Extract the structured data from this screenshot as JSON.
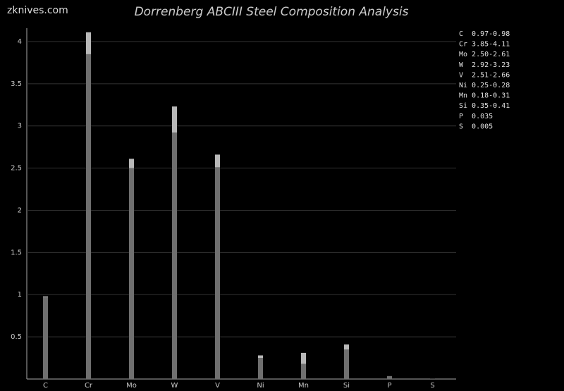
{
  "watermark": "zknives.com",
  "chart_data": {
    "type": "range-bar",
    "title": "Dorrenberg ABCIII Steel Composition Analysis",
    "categories": [
      "C",
      "Cr",
      "Mo",
      "W",
      "V",
      "Ni",
      "Mn",
      "Si",
      "P",
      "S"
    ],
    "min_values": [
      0.97,
      3.85,
      2.5,
      2.92,
      2.51,
      0.25,
      0.18,
      0.35,
      0.035,
      0.005
    ],
    "max_values": [
      0.98,
      4.11,
      2.61,
      3.23,
      2.66,
      0.28,
      0.31,
      0.41,
      0.035,
      0.005
    ],
    "min_color": "#6f6f6f",
    "range_color": "#b8b8b8",
    "legend": [
      "C  0.97-0.98",
      "Cr 3.85-4.11",
      "Mo 2.50-2.61",
      "W  2.92-3.23",
      "V  2.51-2.66",
      "Ni 0.25-0.28",
      "Mn 0.18-0.31",
      "Si 0.35-0.41",
      "P  0.035",
      "S  0.005"
    ],
    "ylim": [
      0,
      4.15
    ],
    "yticks": [
      0.5,
      1,
      1.5,
      2,
      2.5,
      3,
      3.5,
      4
    ],
    "grid": true
  }
}
